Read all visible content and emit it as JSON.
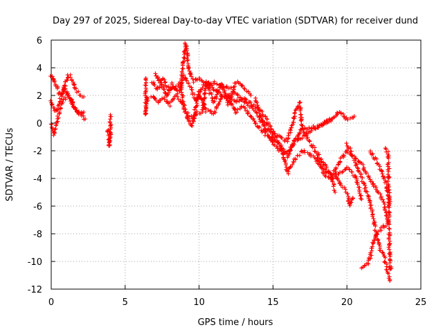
{
  "chart_data": {
    "type": "scatter",
    "title": "Day 297 of 2025, Sidereal Day-to-day VTEC variation (SDTVAR) for receiver dund",
    "xlabel": "GPS time / hours",
    "ylabel": "SDTVAR / TECUs",
    "xlim": [
      0,
      25
    ],
    "ylim": [
      -12,
      6
    ],
    "xticks": [
      0,
      5,
      10,
      15,
      20,
      25
    ],
    "yticks": [
      -12,
      -10,
      -8,
      -6,
      -4,
      -2,
      0,
      2,
      4,
      6
    ],
    "grid": true,
    "marker": "+",
    "colors": {
      "points": "#ff0000",
      "axes": "#000000",
      "grid": "#a0a0a0"
    },
    "series": [
      {
        "name": "SDTVAR",
        "tracks": [
          [
            [
              0.0,
              3.5
            ],
            [
              0.3,
              2.8
            ],
            [
              0.6,
              2.0
            ],
            [
              0.9,
              2.6
            ],
            [
              1.1,
              3.4
            ],
            [
              1.3,
              3.4
            ],
            [
              1.6,
              2.6
            ],
            [
              1.9,
              2.1
            ],
            [
              2.2,
              1.9
            ]
          ],
          [
            [
              0.0,
              0.0
            ],
            [
              0.2,
              -0.8
            ],
            [
              0.5,
              0.6
            ],
            [
              0.8,
              1.6
            ],
            [
              1.1,
              2.1
            ],
            [
              1.4,
              1.6
            ],
            [
              1.7,
              0.9
            ],
            [
              2.0,
              0.6
            ],
            [
              2.3,
              0.3
            ]
          ],
          [
            [
              0.0,
              1.6
            ],
            [
              0.3,
              0.8
            ],
            [
              0.6,
              1.6
            ],
            [
              0.9,
              2.6
            ],
            [
              1.2,
              2.0
            ],
            [
              1.5,
              1.2
            ],
            [
              1.8,
              0.8
            ],
            [
              2.2,
              0.8
            ]
          ],
          [
            [
              3.8,
              -0.5
            ],
            [
              3.9,
              -1.0
            ],
            [
              3.9,
              -1.7
            ],
            [
              4.0,
              -1.2
            ],
            [
              4.0,
              0.2
            ],
            [
              4.0,
              0.6
            ]
          ],
          [
            [
              6.4,
              3.3
            ],
            [
              6.4,
              0.6
            ],
            [
              6.5,
              1.8
            ]
          ],
          [
            [
              6.8,
              3.0
            ],
            [
              7.2,
              2.4
            ],
            [
              7.6,
              3.2
            ],
            [
              8.0,
              2.3
            ],
            [
              8.4,
              2.6
            ],
            [
              8.8,
              3.0
            ],
            [
              9.1,
              5.8
            ],
            [
              9.3,
              4.0
            ],
            [
              9.6,
              3.0
            ],
            [
              10.0,
              3.2
            ],
            [
              10.5,
              2.7
            ],
            [
              11.0,
              3.0
            ],
            [
              11.5,
              2.6
            ],
            [
              12.0,
              2.6
            ],
            [
              12.5,
              2.2
            ],
            [
              13.0,
              1.6
            ],
            [
              13.5,
              1.2
            ],
            [
              14.0,
              0.6
            ],
            [
              14.5,
              -0.6
            ],
            [
              15.0,
              -1.4
            ],
            [
              15.5,
              -2.0
            ],
            [
              16.0,
              -2.4
            ],
            [
              16.5,
              -1.2
            ],
            [
              17.0,
              -1.0
            ],
            [
              17.5,
              -0.6
            ],
            [
              18.0,
              -0.3
            ],
            [
              18.5,
              0.0
            ],
            [
              19.0,
              0.3
            ],
            [
              19.5,
              0.8
            ],
            [
              20.0,
              0.3
            ],
            [
              20.5,
              0.5
            ]
          ],
          [
            [
              6.8,
              2.0
            ],
            [
              7.2,
              1.5
            ],
            [
              7.6,
              1.8
            ],
            [
              8.0,
              1.3
            ],
            [
              8.4,
              2.0
            ],
            [
              8.8,
              1.6
            ],
            [
              9.2,
              0.7
            ],
            [
              9.6,
              0.3
            ],
            [
              10.0,
              2.2
            ],
            [
              10.5,
              0.9
            ],
            [
              11.0,
              0.7
            ],
            [
              11.5,
              1.9
            ],
            [
              12.0,
              1.7
            ],
            [
              12.5,
              0.8
            ],
            [
              13.0,
              1.2
            ],
            [
              13.5,
              0.5
            ],
            [
              14.0,
              -0.2
            ],
            [
              14.5,
              -0.8
            ],
            [
              15.0,
              -1.0
            ],
            [
              15.5,
              -1.7
            ],
            [
              16.0,
              -2.1
            ],
            [
              16.5,
              -1.2
            ],
            [
              17.0,
              -0.4
            ],
            [
              17.5,
              -0.3
            ],
            [
              18.0,
              -0.3
            ],
            [
              18.5,
              0.0
            ],
            [
              19.0,
              0.3
            ]
          ],
          [
            [
              7.0,
              3.6
            ],
            [
              7.4,
              3.0
            ],
            [
              7.8,
              2.0
            ],
            [
              8.2,
              2.8
            ],
            [
              8.6,
              2.2
            ],
            [
              9.0,
              3.4
            ],
            [
              9.4,
              2.6
            ],
            [
              9.8,
              1.6
            ],
            [
              10.2,
              2.5
            ],
            [
              10.6,
              3.0
            ],
            [
              11.0,
              2.4
            ],
            [
              11.5,
              2.0
            ],
            [
              12.0,
              2.0
            ],
            [
              12.5,
              1.6
            ],
            [
              13.0,
              1.8
            ],
            [
              13.5,
              1.4
            ],
            [
              14.0,
              1.0
            ],
            [
              14.5,
              0.4
            ],
            [
              15.0,
              -0.7
            ],
            [
              15.5,
              -1.0
            ],
            [
              16.0,
              -1.3
            ],
            [
              16.5,
              0.8
            ],
            [
              16.8,
              1.5
            ],
            [
              17.0,
              -0.5
            ],
            [
              17.5,
              -1.4
            ],
            [
              18.0,
              -2.2
            ],
            [
              18.5,
              -3.0
            ],
            [
              19.0,
              -4.0
            ],
            [
              19.2,
              -5.0
            ]
          ],
          [
            [
              8.8,
              2.8
            ],
            [
              9.0,
              1.0
            ],
            [
              9.2,
              0.5
            ],
            [
              9.5,
              -0.2
            ],
            [
              9.8,
              0.8
            ],
            [
              10.2,
              0.8
            ],
            [
              10.5,
              2.8
            ],
            [
              11.0,
              1.5
            ],
            [
              11.5,
              2.9
            ],
            [
              12.0,
              1.4
            ],
            [
              12.5,
              3.0
            ],
            [
              13.0,
              2.6
            ],
            [
              13.5,
              2.0
            ]
          ],
          [
            [
              13.8,
              1.8
            ],
            [
              14.2,
              0.4
            ],
            [
              14.6,
              -0.4
            ],
            [
              15.0,
              -0.8
            ],
            [
              15.5,
              -1.6
            ],
            [
              16.0,
              -3.6
            ],
            [
              16.5,
              -2.6
            ],
            [
              17.0,
              -2.0
            ],
            [
              17.5,
              -2.2
            ],
            [
              18.0,
              -2.8
            ],
            [
              18.5,
              -3.4
            ],
            [
              19.0,
              -3.8
            ],
            [
              19.5,
              -2.8
            ],
            [
              20.0,
              -2.0
            ],
            [
              20.5,
              -2.4
            ],
            [
              21.0,
              -3.0
            ],
            [
              21.5,
              -4.0
            ],
            [
              22.0,
              -4.8
            ],
            [
              22.5,
              -5.8
            ],
            [
              22.8,
              -7.2
            ]
          ],
          [
            [
              18.0,
              -2.4
            ],
            [
              18.5,
              -3.8
            ],
            [
              19.0,
              -4.0
            ],
            [
              19.5,
              -3.6
            ],
            [
              20.0,
              -3.2
            ],
            [
              20.5,
              -3.8
            ],
            [
              20.8,
              -4.6
            ],
            [
              21.0,
              -5.5
            ]
          ],
          [
            [
              19.2,
              -3.6
            ],
            [
              19.5,
              -4.4
            ],
            [
              20.0,
              -5.0
            ],
            [
              20.2,
              -6.0
            ],
            [
              20.4,
              -5.4
            ]
          ],
          [
            [
              20.0,
              -1.5
            ],
            [
              20.5,
              -2.6
            ],
            [
              21.0,
              -4.0
            ],
            [
              21.5,
              -5.5
            ],
            [
              21.8,
              -7.0
            ],
            [
              22.0,
              -8.2
            ],
            [
              22.2,
              -9.0
            ],
            [
              22.5,
              -9.6
            ],
            [
              22.7,
              -10.5
            ],
            [
              22.9,
              -11.4
            ]
          ],
          [
            [
              21.0,
              -10.5
            ],
            [
              21.4,
              -10.2
            ],
            [
              21.6,
              -9.6
            ],
            [
              21.8,
              -8.6
            ],
            [
              22.0,
              -8.0
            ],
            [
              22.2,
              -7.8
            ],
            [
              22.5,
              -7.5
            ],
            [
              22.8,
              -7.2
            ]
          ],
          [
            [
              21.6,
              -2.0
            ],
            [
              22.0,
              -2.8
            ],
            [
              22.4,
              -3.6
            ],
            [
              22.7,
              -4.6
            ],
            [
              22.9,
              -5.8
            ]
          ],
          [
            [
              22.6,
              -1.8
            ],
            [
              22.8,
              -2.2
            ],
            [
              22.9,
              -10.6
            ],
            [
              23.0,
              -10.4
            ]
          ]
        ]
      }
    ]
  }
}
